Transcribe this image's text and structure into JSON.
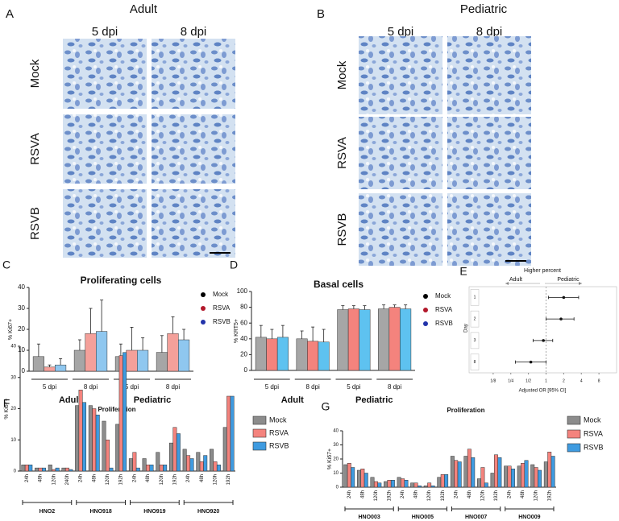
{
  "image_panels": [
    {
      "letter": "A",
      "title": "Adult",
      "columns": [
        "5 dpi",
        "8 dpi"
      ],
      "rows": [
        "Mock",
        "RSVA",
        "RSVB"
      ]
    },
    {
      "letter": "B",
      "title": "Pediatric",
      "columns": [
        "5 dpi",
        "8 dpi"
      ],
      "rows": [
        "Mock",
        "RSVA",
        "RSVB"
      ]
    }
  ],
  "chart_data": [
    {
      "type": "bar",
      "letter": "C",
      "title": "Proliferating cells",
      "ylabel": "% Ki67+",
      "categories": [
        "5 dpi",
        "8 dpi",
        "5 dpi",
        "8 dpi"
      ],
      "group_labels": [
        "Adult",
        "Pediatric"
      ],
      "ylim": [
        0,
        40
      ],
      "yticks": [
        0,
        10,
        20,
        30,
        40
      ],
      "legend_marker": "dot",
      "series": [
        {
          "name": "Mock",
          "color": "#a6a6a6",
          "marker_color": "#000000",
          "values": [
            7,
            10,
            7,
            9
          ],
          "errors": [
            6,
            5,
            6,
            8
          ]
        },
        {
          "name": "RSVA",
          "color": "#f4a09a",
          "marker_color": "#b2182b",
          "values": [
            2,
            18,
            10,
            18
          ],
          "errors": [
            1,
            12,
            11,
            8
          ]
        },
        {
          "name": "RSVB",
          "color": "#8fc7ef",
          "marker_color": "#2233aa",
          "values": [
            3,
            19,
            10,
            15
          ],
          "errors": [
            3,
            15,
            6,
            5
          ]
        }
      ]
    },
    {
      "type": "bar",
      "letter": "D",
      "title": "Basal cells",
      "ylabel": "% KRT5+",
      "categories": [
        "5 dpi",
        "8 dpi",
        "5 dpi",
        "8 dpi"
      ],
      "group_labels": [
        "Adult",
        "Pediatric"
      ],
      "ylim": [
        0,
        100
      ],
      "yticks": [
        0,
        20,
        40,
        60,
        80,
        100
      ],
      "legend_marker": "dot",
      "series": [
        {
          "name": "Mock",
          "color": "#a6a6a6",
          "marker_color": "#000000",
          "values": [
            42,
            40,
            77,
            78
          ],
          "errors": [
            15,
            10,
            5,
            5
          ]
        },
        {
          "name": "RSVA",
          "color": "#f4837d",
          "marker_color": "#b2182b",
          "values": [
            40,
            37,
            78,
            80
          ],
          "errors": [
            12,
            18,
            4,
            3
          ]
        },
        {
          "name": "RSVB",
          "color": "#5ec2f0",
          "marker_color": "#2233aa",
          "values": [
            42,
            36,
            77,
            78
          ],
          "errors": [
            15,
            16,
            5,
            5
          ]
        }
      ]
    },
    {
      "type": "forest",
      "letter": "E",
      "header": "Higher percent",
      "left_label": "Adult",
      "right_label": "Pediatric",
      "ylabel": "Day",
      "categories": [
        "1",
        "2",
        "3",
        "8"
      ],
      "values": [
        2,
        1.8,
        0.9,
        0.55
      ],
      "lower": [
        1.1,
        1.0,
        0.6,
        0.3
      ],
      "upper": [
        3.6,
        3.0,
        1.3,
        1.0
      ],
      "xlabel": "Adjusted OR [95% CI]",
      "log_x": true,
      "xlim": [
        0.0625,
        16
      ],
      "reference_line": 1,
      "xticks": [
        {
          "value": 0.125,
          "label": "1/8"
        },
        {
          "value": 0.25,
          "label": "1/4"
        },
        {
          "value": 0.5,
          "label": "1/2"
        },
        1,
        2,
        4,
        8
      ]
    },
    {
      "type": "bar",
      "letter": "F",
      "title": "Proliferation",
      "ylabel": "% Ki67+",
      "categories": [
        "24h",
        "48h",
        "120h",
        "240h",
        "24h",
        "48h",
        "120h",
        "192h",
        "24h",
        "48h",
        "120h",
        "192h",
        "24h",
        "48h",
        "120h",
        "192h"
      ],
      "group_labels": [
        "HNO2",
        "HNO918",
        "HNO919",
        "HNO920"
      ],
      "ylim": [
        0,
        40
      ],
      "yticks": [
        0,
        10,
        20,
        30,
        40
      ],
      "legend_marker": "box",
      "series": [
        {
          "name": "Mock",
          "color": "#8c8c8c",
          "values": [
            2,
            1,
            2,
            1,
            21,
            21,
            16,
            15,
            4,
            4,
            6,
            9,
            7,
            6,
            7,
            14
          ]
        },
        {
          "name": "RSVA",
          "color": "#f4837d",
          "values": [
            2,
            1,
            0.5,
            1,
            26,
            20,
            10,
            37,
            6,
            2,
            2,
            14,
            5,
            3,
            3,
            24
          ]
        },
        {
          "name": "RSVB",
          "color": "#3f9be0",
          "values": [
            2,
            1,
            1,
            0.5,
            22,
            18,
            1,
            38,
            1,
            2,
            2,
            12,
            4,
            5,
            2,
            24
          ]
        }
      ]
    },
    {
      "type": "bar",
      "letter": "G",
      "title": "Proliferation",
      "ylabel": "% Ki67+",
      "categories": [
        "24h",
        "48h",
        "120h",
        "192h",
        "24h",
        "48h",
        "120h",
        "192h",
        "24h",
        "48h",
        "120h",
        "192h",
        "24h",
        "48h",
        "120h",
        "192h"
      ],
      "group_labels": [
        "HNO003",
        "HNO005",
        "HNO007",
        "HNO009"
      ],
      "ylim": [
        0,
        40
      ],
      "yticks": [
        0,
        10,
        20,
        30,
        40
      ],
      "legend_marker": "box",
      "series": [
        {
          "name": "Mock",
          "color": "#8c8c8c",
          "values": [
            16,
            12,
            7,
            4,
            7,
            3,
            1,
            7,
            22,
            22,
            6,
            10,
            15,
            15,
            16,
            18
          ]
        },
        {
          "name": "RSVA",
          "color": "#f4837d",
          "values": [
            17,
            13,
            4,
            5,
            6,
            3,
            3,
            9,
            19,
            27,
            14,
            23,
            15,
            17,
            14,
            25
          ]
        },
        {
          "name": "RSVB",
          "color": "#3f9be0",
          "values": [
            14,
            10,
            3,
            5,
            5,
            1,
            1,
            9,
            18,
            21,
            3,
            21,
            13,
            19,
            12,
            22
          ]
        }
      ]
    }
  ]
}
